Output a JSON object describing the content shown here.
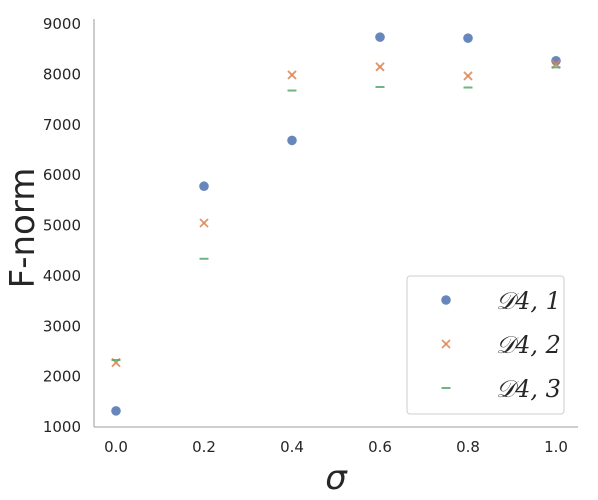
{
  "chart_data": {
    "type": "scatter",
    "xlabel": "σ",
    "ylabel": "F-norm",
    "xlim": [
      -0.05,
      1.05
    ],
    "ylim": [
      1000,
      9100
    ],
    "x_ticks": [
      "0.0",
      "0.2",
      "0.4",
      "0.6",
      "0.8",
      "1.0"
    ],
    "y_ticks": [
      "1000",
      "2000",
      "3000",
      "4000",
      "5000",
      "6000",
      "7000",
      "8000",
      "9000"
    ],
    "grid": false,
    "legend_position": "bottom-right",
    "x": [
      0.0,
      0.2,
      0.4,
      0.6,
      0.8,
      1.0
    ],
    "series": [
      {
        "name": "𝒟4, 1",
        "marker": "circle",
        "color": "#4c72b0",
        "values": [
          1320,
          5780,
          6690,
          8740,
          8720,
          8270
        ]
      },
      {
        "name": "𝒟4, 2",
        "marker": "x",
        "color": "#dd8452",
        "values": [
          2280,
          5050,
          7990,
          8150,
          7970,
          8200
        ]
      },
      {
        "name": "𝒟4, 3",
        "marker": "dash",
        "color": "#55a868",
        "values": [
          2330,
          4340,
          7680,
          7750,
          7740,
          8140
        ]
      }
    ]
  }
}
